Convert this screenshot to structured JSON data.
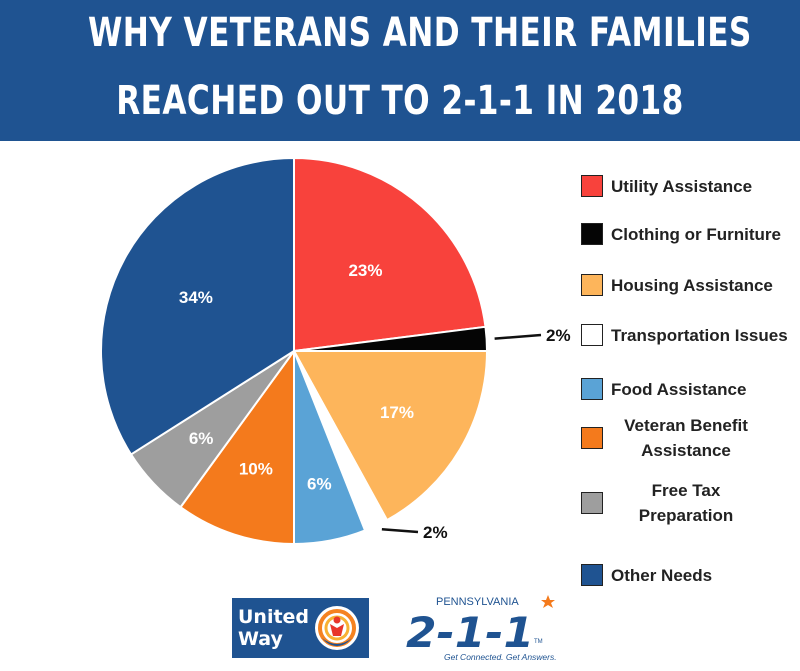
{
  "title": {
    "line1": "WHY VETERANS AND THEIR FAMILIES",
    "line2": "REACHED OUT TO 2-1-1 IN 2018"
  },
  "colors": {
    "banner": "#1f5391",
    "utility": "#f8423c",
    "clothing": "#050505",
    "housing": "#fdb55b",
    "transportation": "#ffffff",
    "food": "#5aa3d6",
    "veteran": "#f47a1c",
    "tax": "#9e9e9e",
    "other": "#1f5391"
  },
  "chart_data": {
    "type": "pie",
    "title": "WHY VETERANS AND THEIR FAMILIES REACHED OUT TO 2-1-1 IN 2018",
    "slices": [
      {
        "label": "Utility Assistance",
        "value": 23,
        "display": "23%",
        "color": "#f8423c"
      },
      {
        "label": "Clothing or Furniture",
        "value": 2,
        "display": "2%",
        "color": "#050505"
      },
      {
        "label": "Housing Assistance",
        "value": 17,
        "display": "17%",
        "color": "#fdb55b"
      },
      {
        "label": "Transportation Issues",
        "value": 2,
        "display": "2%",
        "color": "#ffffff"
      },
      {
        "label": "Food Assistance",
        "value": 6,
        "display": "6%",
        "color": "#5aa3d6"
      },
      {
        "label": "Veteran Benefit Assistance",
        "value": 10,
        "display": "10%",
        "color": "#f47a1c"
      },
      {
        "label": "Free Tax Preparation",
        "value": 6,
        "display": "6%",
        "color": "#9e9e9e"
      },
      {
        "label": "Other Needs",
        "value": 34,
        "display": "34%",
        "color": "#1f5391"
      }
    ],
    "legend_position": "right"
  },
  "legend": [
    {
      "line1": "Utility Assistance",
      "line2": ""
    },
    {
      "line1": "Clothing or Furniture",
      "line2": ""
    },
    {
      "line1": "Housing Assistance",
      "line2": ""
    },
    {
      "line1": "Transportation Issues",
      "line2": ""
    },
    {
      "line1": "Food Assistance",
      "line2": ""
    },
    {
      "line1": "Veteran Benefit",
      "line2": "Assistance"
    },
    {
      "line1": "Free Tax",
      "line2": "Preparation"
    },
    {
      "line1": "Other Needs",
      "line2": ""
    }
  ],
  "logos": {
    "united_way": {
      "line1": "United",
      "line2": "Way"
    },
    "pa211": {
      "state": "PENNSYLVANIA",
      "number": "2-1-1",
      "tagline": "Get Connected. Get Answers.",
      "tm": "TM"
    }
  }
}
